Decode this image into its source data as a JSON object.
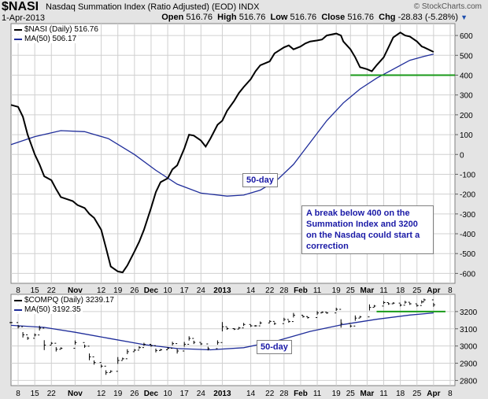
{
  "header": {
    "symbol": "$NASI",
    "name": "Nasdaq Summation Index (Ratio Adjusted) (EOD)  INDX",
    "date": "1-Apr-2013",
    "copyright": "© StockCharts.com",
    "open_label": "Open",
    "open": "516.76",
    "high_label": "High",
    "high": "516.76",
    "low_label": "Low",
    "low": "516.76",
    "close_label": "Close",
    "close": "516.76",
    "chg_label": "Chg",
    "chg": "-28.83 (-5.28%)"
  },
  "legend": {
    "top_series": "$NASI (Daily) 516.76",
    "top_ma": "MA(50) 506.17",
    "bottom_series": "$COMPQ (Daily) 3239.17",
    "bottom_ma": "MA(50) 3192.35"
  },
  "annotations": {
    "ma_top": "50-day",
    "ma_bottom": "50-day",
    "note": "A break below 400 on the Summation Index and 3200 on the Nasdaq could start a correction"
  },
  "colors": {
    "background": "#e4e4e4",
    "plot_bg": "#ffffff",
    "grid": "#d0d0d0",
    "price_line": "#000000",
    "ma_line": "#1f2d9a",
    "support_line": "#199a19",
    "annotation_text": "#1a1aa6"
  },
  "chart_data": [
    {
      "type": "line",
      "symbol": "$NASI",
      "ylim": [
        -650,
        660
      ],
      "yticks": [
        -600,
        -500,
        -400,
        -300,
        -200,
        -100,
        0,
        100,
        200,
        300,
        400,
        500,
        600
      ],
      "x_start": "2012-10-05",
      "x_end": "2013-04-10",
      "horizontal_line": {
        "value": 400,
        "from": "2013-02-25",
        "to": "2013-04-10"
      },
      "series": [
        {
          "name": "$NASI (Daily)",
          "points": [
            [
              "2012-10-05",
              250
            ],
            [
              "2012-10-08",
              240
            ],
            [
              "2012-10-10",
              190
            ],
            [
              "2012-10-12",
              100
            ],
            [
              "2012-10-15",
              0
            ],
            [
              "2012-10-17",
              -50
            ],
            [
              "2012-10-19",
              -110
            ],
            [
              "2012-10-22",
              -130
            ],
            [
              "2012-10-24",
              -175
            ],
            [
              "2012-10-26",
              -215
            ],
            [
              "2012-10-31",
              -235
            ],
            [
              "2012-11-02",
              -255
            ],
            [
              "2012-11-05",
              -270
            ],
            [
              "2012-11-07",
              -300
            ],
            [
              "2012-11-09",
              -320
            ],
            [
              "2012-11-12",
              -380
            ],
            [
              "2012-11-14",
              -470
            ],
            [
              "2012-11-16",
              -565
            ],
            [
              "2012-11-19",
              -590
            ],
            [
              "2012-11-21",
              -595
            ],
            [
              "2012-11-23",
              -560
            ],
            [
              "2012-11-26",
              -490
            ],
            [
              "2012-11-28",
              -440
            ],
            [
              "2012-11-30",
              -380
            ],
            [
              "2012-12-03",
              -270
            ],
            [
              "2012-12-05",
              -190
            ],
            [
              "2012-12-07",
              -140
            ],
            [
              "2012-12-10",
              -120
            ],
            [
              "2012-12-12",
              -75
            ],
            [
              "2012-12-14",
              -55
            ],
            [
              "2012-12-17",
              30
            ],
            [
              "2012-12-19",
              100
            ],
            [
              "2012-12-21",
              95
            ],
            [
              "2012-12-24",
              70
            ],
            [
              "2012-12-26",
              40
            ],
            [
              "2012-12-28",
              80
            ],
            [
              "2012-12-31",
              150
            ],
            [
              "2013-01-02",
              170
            ],
            [
              "2013-01-04",
              220
            ],
            [
              "2013-01-07",
              270
            ],
            [
              "2013-01-09",
              310
            ],
            [
              "2013-01-11",
              340
            ],
            [
              "2013-01-14",
              380
            ],
            [
              "2013-01-16",
              420
            ],
            [
              "2013-01-18",
              450
            ],
            [
              "2013-01-22",
              470
            ],
            [
              "2013-01-24",
              510
            ],
            [
              "2013-01-28",
              540
            ],
            [
              "2013-01-30",
              550
            ],
            [
              "2013-02-01",
              530
            ],
            [
              "2013-02-04",
              545
            ],
            [
              "2013-02-06",
              560
            ],
            [
              "2013-02-08",
              570
            ],
            [
              "2013-02-11",
              575
            ],
            [
              "2013-02-13",
              580
            ],
            [
              "2013-02-15",
              600
            ],
            [
              "2013-02-19",
              610
            ],
            [
              "2013-02-21",
              600
            ],
            [
              "2013-02-22",
              570
            ],
            [
              "2013-02-25",
              530
            ],
            [
              "2013-02-27",
              490
            ],
            [
              "2013-03-01",
              440
            ],
            [
              "2013-03-04",
              430
            ],
            [
              "2013-03-06",
              420
            ],
            [
              "2013-03-08",
              450
            ],
            [
              "2013-03-11",
              490
            ],
            [
              "2013-03-13",
              540
            ],
            [
              "2013-03-15",
              590
            ],
            [
              "2013-03-18",
              615
            ],
            [
              "2013-03-20",
              600
            ],
            [
              "2013-03-22",
              595
            ],
            [
              "2013-03-25",
              570
            ],
            [
              "2013-03-27",
              545
            ],
            [
              "2013-03-28",
              540
            ],
            [
              "2013-04-01",
              517
            ]
          ]
        },
        {
          "name": "MA(50)",
          "points": [
            [
              "2012-10-05",
              50
            ],
            [
              "2012-10-15",
              90
            ],
            [
              "2012-10-26",
              120
            ],
            [
              "2012-11-05",
              115
            ],
            [
              "2012-11-15",
              80
            ],
            [
              "2012-11-26",
              0
            ],
            [
              "2012-12-05",
              -80
            ],
            [
              "2012-12-14",
              -150
            ],
            [
              "2012-12-24",
              -195
            ],
            [
              "2013-01-04",
              -210
            ],
            [
              "2013-01-11",
              -205
            ],
            [
              "2013-01-18",
              -180
            ],
            [
              "2013-01-25",
              -130
            ],
            [
              "2013-02-01",
              -50
            ],
            [
              "2013-02-08",
              60
            ],
            [
              "2013-02-15",
              170
            ],
            [
              "2013-02-22",
              260
            ],
            [
              "2013-03-01",
              330
            ],
            [
              "2013-03-08",
              385
            ],
            [
              "2013-03-15",
              430
            ],
            [
              "2013-03-22",
              475
            ],
            [
              "2013-03-28",
              495
            ],
            [
              "2013-04-01",
              506
            ]
          ]
        }
      ]
    },
    {
      "type": "ohlc",
      "symbol": "$COMPQ",
      "ylim": [
        2770,
        3300
      ],
      "yticks": [
        2800,
        2900,
        3000,
        3100,
        3200
      ],
      "x_start": "2012-10-05",
      "x_end": "2013-04-10",
      "horizontal_line": {
        "value": 3200,
        "from": "2013-03-08",
        "to": "2013-04-06"
      },
      "series": [
        {
          "name": "$COMPQ (Daily)",
          "points": [
            [
              "2012-10-05",
              3136
            ],
            [
              "2012-10-08",
              3112
            ],
            [
              "2012-10-10",
              3065
            ],
            [
              "2012-10-12",
              3045
            ],
            [
              "2012-10-15",
              3064
            ],
            [
              "2012-10-17",
              3104
            ],
            [
              "2012-10-19",
              3005
            ],
            [
              "2012-10-22",
              3016
            ],
            [
              "2012-10-24",
              2981
            ],
            [
              "2012-10-26",
              2987
            ],
            [
              "2012-11-01",
              3020
            ],
            [
              "2012-11-05",
              2999
            ],
            [
              "2012-11-07",
              2937
            ],
            [
              "2012-11-09",
              2904
            ],
            [
              "2012-11-12",
              2883
            ],
            [
              "2012-11-14",
              2846
            ],
            [
              "2012-11-16",
              2853
            ],
            [
              "2012-11-19",
              2916
            ],
            [
              "2012-11-21",
              2926
            ],
            [
              "2012-11-23",
              2967
            ],
            [
              "2012-11-26",
              2976
            ],
            [
              "2012-11-28",
              2991
            ],
            [
              "2012-11-30",
              3010
            ],
            [
              "2012-12-03",
              3002
            ],
            [
              "2012-12-05",
              2974
            ],
            [
              "2012-12-07",
              2978
            ],
            [
              "2012-12-10",
              2987
            ],
            [
              "2012-12-12",
              3014
            ],
            [
              "2012-12-14",
              2971
            ],
            [
              "2012-12-17",
              3010
            ],
            [
              "2012-12-19",
              3044
            ],
            [
              "2012-12-21",
              3021
            ],
            [
              "2012-12-24",
              3012
            ],
            [
              "2012-12-27",
              2985
            ],
            [
              "2012-12-31",
              3020
            ],
            [
              "2013-01-02",
              3112
            ],
            [
              "2013-01-04",
              3101
            ],
            [
              "2013-01-07",
              3098
            ],
            [
              "2013-01-09",
              3105
            ],
            [
              "2013-01-11",
              3125
            ],
            [
              "2013-01-14",
              3117
            ],
            [
              "2013-01-16",
              3117
            ],
            [
              "2013-01-18",
              3134
            ],
            [
              "2013-01-22",
              3143
            ],
            [
              "2013-01-24",
              3130
            ],
            [
              "2013-01-28",
              3154
            ],
            [
              "2013-01-30",
              3142
            ],
            [
              "2013-02-01",
              3179
            ],
            [
              "2013-02-05",
              3171
            ],
            [
              "2013-02-07",
              3165
            ],
            [
              "2013-02-11",
              3192
            ],
            [
              "2013-02-13",
              3196
            ],
            [
              "2013-02-15",
              3192
            ],
            [
              "2013-02-19",
              3213
            ],
            [
              "2013-02-21",
              3131
            ],
            [
              "2013-02-25",
              3116
            ],
            [
              "2013-02-27",
              3162
            ],
            [
              "2013-03-01",
              3169
            ],
            [
              "2013-03-05",
              3224
            ],
            [
              "2013-03-07",
              3232
            ],
            [
              "2013-03-11",
              3252
            ],
            [
              "2013-03-13",
              3245
            ],
            [
              "2013-03-15",
              3249
            ],
            [
              "2013-03-18",
              3237
            ],
            [
              "2013-03-20",
              3254
            ],
            [
              "2013-03-22",
              3245
            ],
            [
              "2013-03-25",
              3235
            ],
            [
              "2013-03-27",
              3256
            ],
            [
              "2013-03-28",
              3268
            ],
            [
              "2013-04-01",
              3239
            ]
          ]
        },
        {
          "name": "MA(50)",
          "points": [
            [
              "2012-10-05",
              3120
            ],
            [
              "2012-10-19",
              3108
            ],
            [
              "2012-11-01",
              3080
            ],
            [
              "2012-11-15",
              3045
            ],
            [
              "2012-11-30",
              3008
            ],
            [
              "2012-12-14",
              2985
            ],
            [
              "2012-12-28",
              2978
            ],
            [
              "2013-01-11",
              2990
            ],
            [
              "2013-01-25",
              3030
            ],
            [
              "2013-02-08",
              3085
            ],
            [
              "2013-02-22",
              3125
            ],
            [
              "2013-03-08",
              3155
            ],
            [
              "2013-03-22",
              3180
            ],
            [
              "2013-04-01",
              3192
            ]
          ]
        }
      ]
    }
  ],
  "x_axis": {
    "labels": [
      [
        "2012-10-08",
        "8"
      ],
      [
        "2012-10-15",
        "15"
      ],
      [
        "2012-10-22",
        "22"
      ],
      [
        "2012-11-01",
        "Nov"
      ],
      [
        "2012-11-12",
        "12"
      ],
      [
        "2012-11-19",
        "19"
      ],
      [
        "2012-11-26",
        "26"
      ],
      [
        "2012-12-03",
        "Dec"
      ],
      [
        "2012-12-10",
        "10"
      ],
      [
        "2012-12-17",
        "17"
      ],
      [
        "2012-12-24",
        "24"
      ],
      [
        "2013-01-02",
        "2013"
      ],
      [
        "2013-01-14",
        "14"
      ],
      [
        "2013-01-22",
        "22"
      ],
      [
        "2013-01-28",
        "28"
      ],
      [
        "2013-02-04",
        "Feb"
      ],
      [
        "2013-02-11",
        "11"
      ],
      [
        "2013-02-19",
        "19"
      ],
      [
        "2013-02-25",
        "25"
      ],
      [
        "2013-03-04",
        "Mar"
      ],
      [
        "2013-03-11",
        "11"
      ],
      [
        "2013-03-18",
        "18"
      ],
      [
        "2013-03-25",
        "25"
      ],
      [
        "2013-04-01",
        "Apr"
      ],
      [
        "2013-04-08",
        "8"
      ]
    ],
    "bold": [
      "Nov",
      "Dec",
      "2013",
      "Feb",
      "Mar",
      "Apr"
    ]
  }
}
